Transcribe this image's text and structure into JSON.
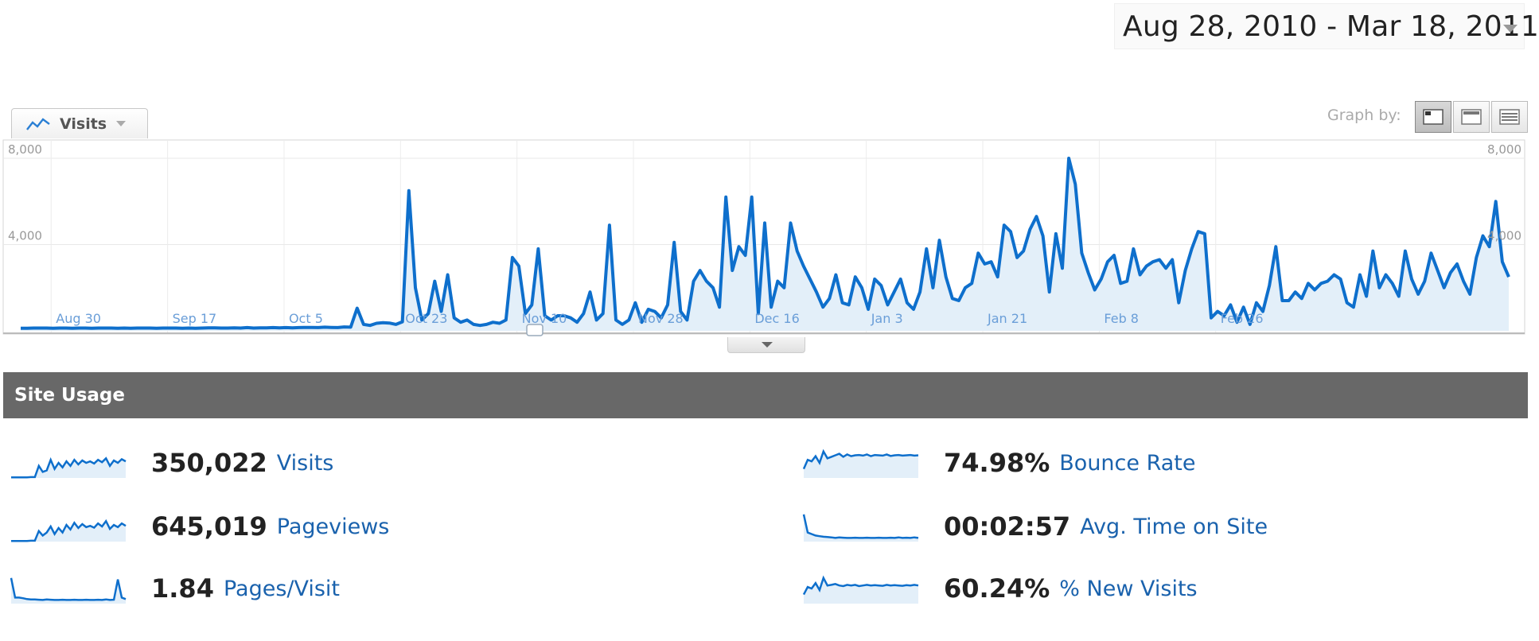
{
  "date_range": {
    "label": "Aug 28, 2010 - Mar 18, 2011"
  },
  "metric_selector": {
    "label": "Visits"
  },
  "graph_by": {
    "label": "Graph by:",
    "options": [
      "day",
      "week",
      "month"
    ],
    "selected": "day"
  },
  "colors": {
    "line": "#0e6fcc",
    "fill": "#e3eff9",
    "header": "#686868",
    "link": "#1a62ad"
  },
  "chart_data": {
    "type": "area",
    "ylabel": "",
    "xlabel": "",
    "ylim": [
      0,
      8000
    ],
    "y_ticks_left": [
      "8,000",
      "4,000"
    ],
    "y_ticks_right": [
      "8,000",
      "4,000"
    ],
    "x_tick_labels": [
      "Aug 30",
      "Sep 17",
      "Oct 5",
      "Oct 23",
      "Nov 10",
      "Nov 28",
      "Dec 16",
      "Jan 3",
      "Jan 21",
      "Feb 8",
      "Feb 26"
    ],
    "x_start": "2010-08-28",
    "grid": true,
    "series": [
      {
        "values": [
          120,
          120,
          130,
          130,
          130,
          120,
          130,
          130,
          120,
          130,
          130,
          120,
          130,
          130,
          130,
          120,
          130,
          120,
          130,
          130,
          130,
          120,
          130,
          130,
          130,
          120,
          130,
          120,
          130,
          140,
          140,
          130,
          130,
          140,
          130,
          150,
          130,
          140,
          140,
          150,
          140,
          150,
          140,
          150,
          160,
          160,
          150,
          170,
          160,
          150,
          180,
          170,
          1050,
          300,
          250,
          350,
          380,
          360,
          300,
          420,
          6500,
          2000,
          500,
          800,
          2300,
          900,
          2600,
          600,
          400,
          500,
          300,
          250,
          300,
          400,
          350,
          500,
          3400,
          3000,
          800,
          1200,
          3800,
          700,
          500,
          700,
          700,
          600,
          400,
          800,
          1800,
          500,
          800,
          4900,
          500,
          300,
          500,
          1300,
          400,
          1000,
          900,
          600,
          1200,
          4100,
          900,
          500,
          2300,
          2800,
          2300,
          2000,
          1100,
          6200,
          2800,
          3900,
          3500,
          6200,
          800,
          5000,
          1100,
          2300,
          2000,
          5000,
          3700,
          3000,
          2400,
          1800,
          1100,
          1500,
          2600,
          1300,
          1200,
          2500,
          2000,
          1000,
          2400,
          2100,
          1200,
          1800,
          2400,
          1300,
          1000,
          1800,
          3800,
          2000,
          4200,
          2500,
          1500,
          1400,
          2000,
          2200,
          3600,
          3100,
          3200,
          2500,
          4900,
          4600,
          3400,
          3700,
          4700,
          5300,
          4400,
          1800,
          4500,
          2900,
          8000,
          6800,
          3600,
          2700,
          1900,
          2400,
          3200,
          3500,
          2200,
          2300,
          3800,
          2600,
          3000,
          3200,
          3300,
          2900,
          3300,
          1300,
          2800,
          3800,
          4600,
          4500,
          600,
          900,
          700,
          1200,
          400,
          1100,
          300,
          1300,
          900,
          2100,
          3900,
          1400,
          1400,
          1800,
          1500,
          2200,
          1900,
          2200,
          2300,
          2600,
          2400,
          1300,
          1100,
          2600,
          1600,
          3700,
          2000,
          2600,
          2200,
          1600,
          3700,
          2400,
          1700,
          2300,
          3600,
          2800,
          2000,
          2700,
          3100,
          2300,
          1700,
          3400,
          4400,
          3900,
          6000,
          3200,
          2500
        ]
      }
    ]
  },
  "site_usage": {
    "title": "Site Usage",
    "left": [
      {
        "value": "350,022",
        "label": "Visits",
        "spark": [
          2,
          2,
          2,
          2,
          2,
          3,
          3,
          40,
          20,
          25,
          60,
          30,
          50,
          35,
          55,
          40,
          60,
          45,
          58,
          50,
          55,
          48,
          60,
          52,
          65,
          40,
          58,
          50,
          62,
          55
        ]
      },
      {
        "value": "645,019",
        "label": "Pageviews",
        "spark": [
          2,
          2,
          2,
          2,
          2,
          3,
          3,
          35,
          20,
          30,
          50,
          25,
          45,
          30,
          55,
          40,
          62,
          45,
          58,
          48,
          52,
          46,
          60,
          50,
          68,
          42,
          55,
          48,
          60,
          52
        ]
      },
      {
        "value": "1.84",
        "label": "Pages/Visit",
        "spark": [
          85,
          20,
          20,
          18,
          15,
          14,
          14,
          13,
          12,
          14,
          13,
          12,
          12,
          13,
          12,
          12,
          13,
          12,
          12,
          13,
          12,
          12,
          13,
          12,
          14,
          12,
          13,
          80,
          20,
          15
        ]
      }
    ],
    "right": [
      {
        "value": "74.98%",
        "label": "Bounce Rate",
        "spark": [
          30,
          60,
          55,
          72,
          50,
          88,
          65,
          70,
          75,
          80,
          70,
          78,
          72,
          75,
          76,
          74,
          78,
          72,
          76,
          75,
          74,
          78,
          73,
          75,
          76,
          74,
          75,
          76,
          74,
          75
        ]
      },
      {
        "value": "00:02:57",
        "label": "Avg. Time on Site",
        "spark": [
          90,
          30,
          25,
          20,
          18,
          16,
          15,
          14,
          12,
          14,
          13,
          12,
          12,
          13,
          12,
          12,
          13,
          12,
          12,
          13,
          12,
          12,
          13,
          12,
          14,
          12,
          13,
          12,
          14,
          12
        ]
      },
      {
        "value": "60.24%",
        "label": "% New Visits",
        "spark": [
          30,
          55,
          50,
          68,
          45,
          85,
          60,
          62,
          65,
          60,
          58,
          62,
          60,
          62,
          58,
          60,
          62,
          60,
          61,
          60,
          59,
          62,
          60,
          61,
          60,
          59,
          61,
          60,
          62,
          60
        ]
      }
    ]
  }
}
